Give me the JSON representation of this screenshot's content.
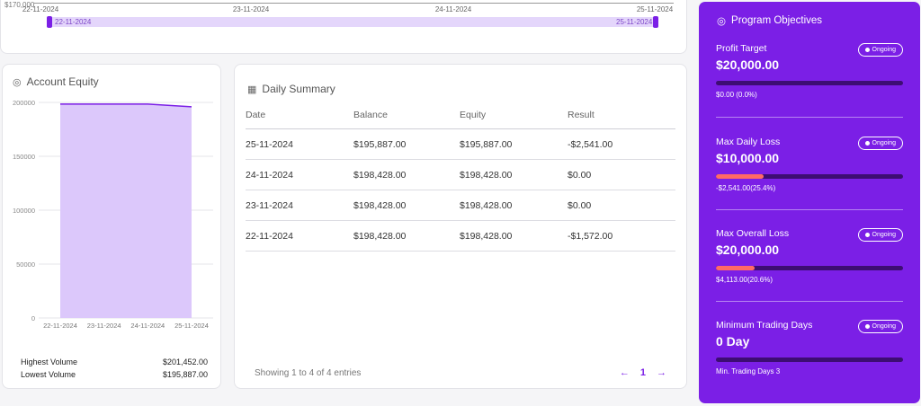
{
  "range_panel": {
    "y_tick": "$170,000",
    "x_ticks": [
      "22-11-2024",
      "23-11-2024",
      "24-11-2024",
      "25-11-2024"
    ],
    "handle_start_label": "22-11-2024",
    "handle_end_label": "25-11-2024"
  },
  "equity": {
    "title": "Account Equity",
    "highest_label": "Highest Volume",
    "highest_value": "$201,452.00",
    "lowest_label": "Lowest Volume",
    "lowest_value": "$195,887.00"
  },
  "chart_data": {
    "type": "area",
    "categories": [
      "22-11-2024",
      "23-11-2024",
      "24-11-2024",
      "25-11-2024"
    ],
    "series": [
      {
        "values": [
          198428,
          198428,
          198428,
          195887
        ]
      }
    ],
    "yticks": [
      "200000",
      "150000",
      "100000",
      "50000",
      "0"
    ],
    "ylim": [
      0,
      200000
    ],
    "grid": true,
    "fill_color": "#dcc8fb",
    "line_color": "#7b1fe6"
  },
  "summary": {
    "title": "Daily Summary",
    "columns": [
      "Date",
      "Balance",
      "Equity",
      "Result"
    ],
    "rows": [
      [
        "25-11-2024",
        "$195,887.00",
        "$195,887.00",
        "-$2,541.00"
      ],
      [
        "24-11-2024",
        "$198,428.00",
        "$198,428.00",
        "$0.00"
      ],
      [
        "23-11-2024",
        "$198,428.00",
        "$198,428.00",
        "$0.00"
      ],
      [
        "22-11-2024",
        "$198,428.00",
        "$198,428.00",
        "-$1,572.00"
      ]
    ],
    "showing": "Showing 1 to 4 of 4 entries",
    "page": "1",
    "prev": "←",
    "next": "→"
  },
  "objectives": {
    "title": "Program Objectives",
    "items": [
      {
        "name": "Profit Target",
        "amount": "$20,000.00",
        "status": "Ongoing",
        "sub": "$0.00 (0.0%)",
        "progress": 0.0
      },
      {
        "name": "Max Daily Loss",
        "amount": "$10,000.00",
        "status": "Ongoing",
        "sub": "-$2,541.00(25.4%)",
        "progress": 25.4
      },
      {
        "name": "Max Overall Loss",
        "amount": "$20,000.00",
        "status": "Ongoing",
        "sub": "$4,113.00(20.6%)",
        "progress": 20.6
      },
      {
        "name": "Minimum Trading Days",
        "amount": "0 Day",
        "status": "Ongoing",
        "sub": "Min. Trading Days 3",
        "progress": 0.0
      }
    ],
    "colors": {
      "background": "#7b1fe6",
      "fill": "#ff6a66",
      "track": "#3d0d73"
    }
  }
}
